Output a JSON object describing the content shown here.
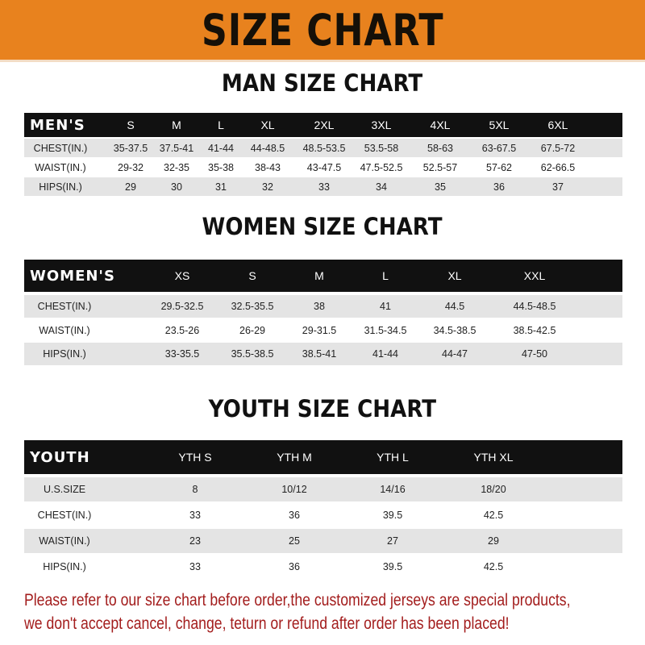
{
  "banner": {
    "title": "SIZE CHART",
    "color": "#e8821e"
  },
  "men": {
    "title": "MAN SIZE CHART",
    "header": [
      "MEN'S",
      "S",
      "M",
      "L",
      "XL",
      "2XL",
      "3XL",
      "4XL",
      "5XL",
      "6XL"
    ],
    "rows": [
      [
        "CHEST(IN.)",
        "35-37.5",
        "37.5-41",
        "41-44",
        "44-48.5",
        "48.5-53.5",
        "53.5-58",
        "58-63",
        "63-67.5",
        "67.5-72"
      ],
      [
        "WAIST(IN.)",
        "29-32",
        "32-35",
        "35-38",
        "38-43",
        "43-47.5",
        "47.5-52.5",
        "52.5-57",
        "57-62",
        "62-66.5"
      ],
      [
        "HIPS(IN.)",
        "29",
        "30",
        "31",
        "32",
        "33",
        "34",
        "35",
        "36",
        "37"
      ]
    ]
  },
  "women": {
    "title": "WOMEN SIZE CHART",
    "header": [
      "WOMEN'S",
      "XS",
      "S",
      "M",
      "L",
      "XL",
      "XXL"
    ],
    "rows": [
      [
        "CHEST(IN.)",
        "29.5-32.5",
        "32.5-35.5",
        "38",
        "41",
        "44.5",
        "44.5-48.5"
      ],
      [
        "WAIST(IN.)",
        "23.5-26",
        "26-29",
        "29-31.5",
        "31.5-34.5",
        "34.5-38.5",
        "38.5-42.5"
      ],
      [
        "HIPS(IN.)",
        "33-35.5",
        "35.5-38.5",
        "38.5-41",
        "41-44",
        "44-47",
        "47-50"
      ]
    ]
  },
  "youth": {
    "title": "YOUTH SIZE CHART",
    "header": [
      "YOUTH",
      "YTH S",
      "YTH M",
      "YTH L",
      "YTH XL"
    ],
    "rows": [
      [
        "U.S.SIZE",
        "8",
        "10/12",
        "14/16",
        "18/20"
      ],
      [
        "CHEST(IN.)",
        "33",
        "36",
        "39.5",
        "42.5"
      ],
      [
        "WAIST(IN.)",
        "23",
        "25",
        "27",
        "29"
      ],
      [
        "HIPS(IN.)",
        "33",
        "36",
        "39.5",
        "42.5"
      ]
    ]
  },
  "footer": {
    "line1": "Please refer to our size chart before order,the customized jerseys are special products,",
    "line2": "we don't accept cancel, change, teturn or refund after order has been placed!",
    "color": "#a31d1d"
  }
}
